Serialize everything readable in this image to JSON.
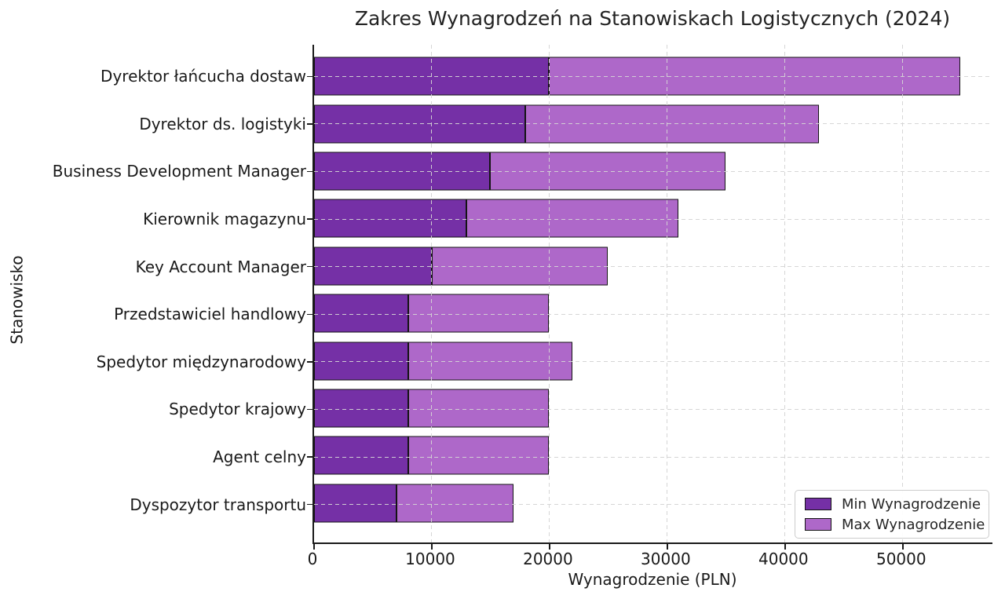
{
  "chart_data": {
    "type": "bar",
    "orientation": "horizontal",
    "stacked": true,
    "title": "Zakres Wynagrodzeń na Stanowiskach Logistycznych (2024)",
    "xlabel": "Wynagrodzenie (PLN)",
    "ylabel": "Stanowisko",
    "categories": [
      "Dyrektor łańcucha dostaw",
      "Dyrektor ds. logistyki",
      "Business Development Manager",
      "Kierownik magazynu",
      "Key Account Manager",
      "Przedstawiciel handlowy",
      "Spedytor międzynarodowy",
      "Spedytor krajowy",
      "Agent celny",
      "Dyspozytor transportu"
    ],
    "series": [
      {
        "name": "Min Wynagrodzenie",
        "color": "#7530A6",
        "values": [
          20000,
          18000,
          15000,
          13000,
          10000,
          8000,
          8000,
          8000,
          8000,
          7000
        ]
      },
      {
        "name": "Max Wynagrodzenie",
        "color": "#AE68C9",
        "values": [
          55000,
          43000,
          35000,
          31000,
          25000,
          20000,
          22000,
          20000,
          20000,
          17000
        ]
      }
    ],
    "bar_note": "dark segment spans 0→min, light segment spans min→max",
    "x_ticks": [
      0,
      10000,
      20000,
      30000,
      40000,
      50000
    ],
    "x_tick_labels": [
      "0",
      "10000",
      "20000",
      "30000",
      "40000",
      "50000"
    ],
    "xlim": [
      0,
      57750
    ],
    "grid": {
      "style": "dashed",
      "color": "#d4d4d4",
      "above_bars": true
    },
    "legend": {
      "position": "lower right"
    },
    "style": {
      "bar_edge_color": "#141414",
      "axis_color": "#1a1a1a",
      "background": "#ffffff"
    }
  }
}
